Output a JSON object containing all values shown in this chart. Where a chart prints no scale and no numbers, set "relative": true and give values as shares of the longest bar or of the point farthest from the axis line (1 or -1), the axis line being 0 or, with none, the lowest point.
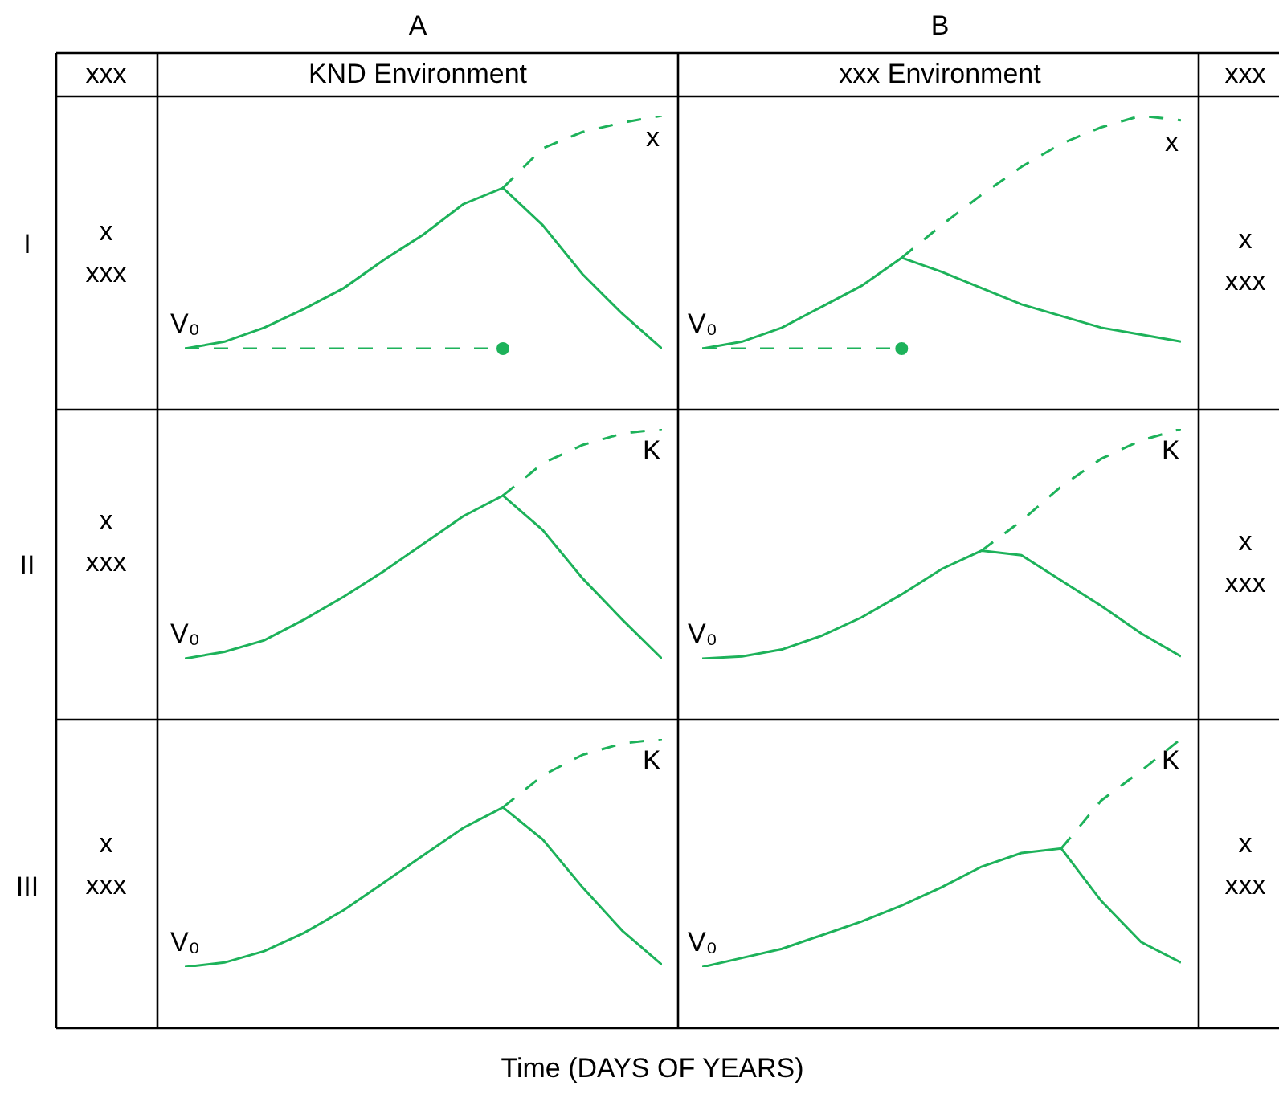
{
  "chart_data": [
    {
      "type": "line",
      "relative": true,
      "categories": [
        null,
        null,
        null,
        null,
        null,
        null,
        null,
        null,
        null,
        null,
        null,
        null,
        null
      ],
      "annotations": [
        "V₀",
        "x"
      ],
      "series": [
        {
          "color": "#1db25a",
          "line_style": "solid",
          "values": [
            0,
            0.03,
            0.09,
            0.17,
            0.26,
            0.38,
            0.49,
            0.62,
            0.69,
            0.53,
            0.32,
            0.15,
            0
          ]
        },
        {
          "color": "#1db25a",
          "line_style": "dashed",
          "values": [
            null,
            null,
            null,
            null,
            null,
            null,
            null,
            null,
            0.69,
            0.86,
            0.93,
            0.97,
            1
          ]
        },
        {
          "color": "#1db25a",
          "line_style": "dashed",
          "values": [
            0,
            0,
            0,
            0,
            0,
            0,
            0,
            0,
            0,
            null,
            null,
            null,
            null
          ]
        },
        {
          "color": "#1db25a",
          "marker": "circle",
          "values": [
            null,
            null,
            null,
            null,
            null,
            null,
            null,
            null,
            0,
            null,
            null,
            null,
            null
          ]
        }
      ]
    },
    {
      "type": "line",
      "relative": true,
      "categories": [
        null,
        null,
        null,
        null,
        null,
        null,
        null,
        null,
        null,
        null,
        null,
        null,
        null
      ],
      "annotations": [
        "V₀",
        "x"
      ],
      "series": [
        {
          "color": "#1db25a",
          "line_style": "solid",
          "values": [
            0,
            0.03,
            0.09,
            0.18,
            0.27,
            0.39,
            0.33,
            0.26,
            0.19,
            0.14,
            0.09,
            0.06,
            0.03
          ]
        },
        {
          "color": "#1db25a",
          "line_style": "dashed",
          "values": [
            null,
            null,
            null,
            null,
            null,
            0.39,
            0.53,
            0.66,
            0.78,
            0.88,
            0.95,
            1,
            0.98
          ]
        },
        {
          "color": "#1db25a",
          "line_style": "dashed",
          "values": [
            0,
            0,
            0,
            0,
            0,
            0,
            null,
            null,
            null,
            null,
            null,
            null,
            null
          ]
        },
        {
          "color": "#1db25a",
          "marker": "circle",
          "values": [
            null,
            null,
            null,
            null,
            null,
            0,
            null,
            null,
            null,
            null,
            null,
            null,
            null
          ]
        }
      ]
    },
    {
      "type": "line",
      "relative": true,
      "categories": [
        null,
        null,
        null,
        null,
        null,
        null,
        null,
        null,
        null,
        null,
        null,
        null,
        null
      ],
      "annotations": [
        "V₀",
        "K"
      ],
      "series": [
        {
          "color": "#1db25a",
          "line_style": "solid",
          "values": [
            0,
            0.03,
            0.08,
            0.17,
            0.27,
            0.38,
            0.5,
            0.62,
            0.71,
            0.56,
            0.35,
            0.17,
            0
          ]
        },
        {
          "color": "#1db25a",
          "line_style": "dashed",
          "values": [
            null,
            null,
            null,
            null,
            null,
            null,
            null,
            null,
            0.71,
            0.85,
            0.93,
            0.98,
            1
          ]
        }
      ]
    },
    {
      "type": "line",
      "relative": true,
      "categories": [
        null,
        null,
        null,
        null,
        null,
        null,
        null,
        null,
        null,
        null,
        null,
        null,
        null
      ],
      "annotations": [
        "V₀",
        "K"
      ],
      "series": [
        {
          "color": "#1db25a",
          "line_style": "solid",
          "values": [
            0,
            0.01,
            0.04,
            0.1,
            0.18,
            0.28,
            0.39,
            0.47,
            0.45,
            0.34,
            0.23,
            0.11,
            0.01
          ]
        },
        {
          "color": "#1db25a",
          "line_style": "dashed",
          "values": [
            null,
            null,
            null,
            null,
            null,
            null,
            null,
            0.47,
            0.6,
            0.75,
            0.87,
            0.95,
            1
          ]
        }
      ]
    },
    {
      "type": "line",
      "relative": true,
      "categories": [
        null,
        null,
        null,
        null,
        null,
        null,
        null,
        null,
        null,
        null,
        null,
        null,
        null
      ],
      "annotations": [
        "V₀",
        "K"
      ],
      "series": [
        {
          "color": "#1db25a",
          "line_style": "solid",
          "values": [
            0,
            0.02,
            0.07,
            0.15,
            0.25,
            0.37,
            0.49,
            0.61,
            0.7,
            0.56,
            0.35,
            0.16,
            0.01
          ]
        },
        {
          "color": "#1db25a",
          "line_style": "dashed",
          "values": [
            null,
            null,
            null,
            null,
            null,
            null,
            null,
            null,
            0.7,
            0.84,
            0.93,
            0.98,
            1
          ]
        }
      ]
    },
    {
      "type": "line",
      "relative": true,
      "categories": [
        null,
        null,
        null,
        null,
        null,
        null,
        null,
        null,
        null,
        null,
        null,
        null,
        null
      ],
      "annotations": [
        "V₀",
        "K"
      ],
      "series": [
        {
          "color": "#1db25a",
          "line_style": "solid",
          "values": [
            0,
            0.04,
            0.08,
            0.14,
            0.2,
            0.27,
            0.35,
            0.44,
            0.5,
            0.52,
            0.29,
            0.11,
            0.02
          ]
        },
        {
          "color": "#1db25a",
          "line_style": "dashed",
          "values": [
            null,
            null,
            null,
            null,
            null,
            null,
            null,
            null,
            null,
            0.52,
            0.73,
            0.86,
            1
          ]
        }
      ]
    },
    {
      "type": "other",
      "xlabel": "Time (DAYS OF YEARS)",
      "annotations": [
        "A",
        "B",
        "xxx",
        "KND Environment",
        "xxx Environment",
        "xxx",
        "I",
        "II",
        "III",
        "x\nxxx",
        "x\nxxx",
        "x\nxxx",
        "x\nxxx",
        "x\nxxx",
        "x\nxxx"
      ]
    }
  ]
}
